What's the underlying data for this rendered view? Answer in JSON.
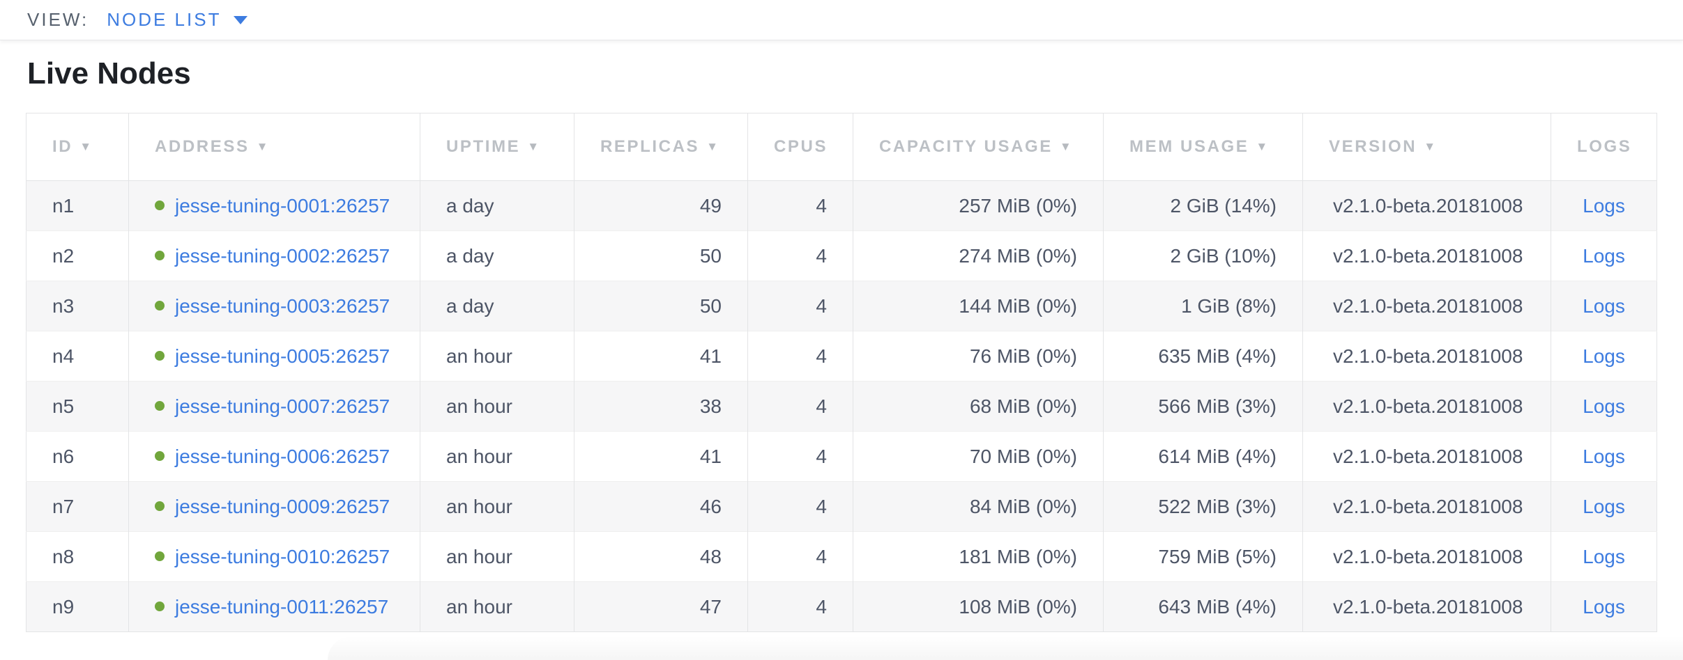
{
  "view_bar": {
    "label": "VIEW:",
    "selected": "NODE LIST"
  },
  "page": {
    "title": "Live Nodes"
  },
  "icons": {
    "sort_desc": "▼"
  },
  "colors": {
    "accent_blue": "#3d7ce0",
    "live_status_green": "#71a63c",
    "header_text_gray": "#bcc0c5",
    "body_text": "#4d5566"
  },
  "table": {
    "columns": [
      {
        "key": "id",
        "label": "ID",
        "sortable": true
      },
      {
        "key": "address",
        "label": "ADDRESS",
        "sortable": true
      },
      {
        "key": "uptime",
        "label": "UPTIME",
        "sortable": true
      },
      {
        "key": "replicas",
        "label": "REPLICAS",
        "sortable": true
      },
      {
        "key": "cpus",
        "label": "CPUS",
        "sortable": false
      },
      {
        "key": "capacity_usage",
        "label": "CAPACITY USAGE",
        "sortable": true
      },
      {
        "key": "mem_usage",
        "label": "MEM USAGE",
        "sortable": true
      },
      {
        "key": "version",
        "label": "VERSION",
        "sortable": true
      },
      {
        "key": "logs",
        "label": "LOGS",
        "sortable": false
      }
    ],
    "rows": [
      {
        "id": "n1",
        "address": "jesse-tuning-0001:26257",
        "uptime": "a day",
        "replicas": "49",
        "cpus": "4",
        "capacity_usage": "257 MiB (0%)",
        "mem_usage": "2 GiB (14%)",
        "version": "v2.1.0-beta.20181008",
        "logs": "Logs"
      },
      {
        "id": "n2",
        "address": "jesse-tuning-0002:26257",
        "uptime": "a day",
        "replicas": "50",
        "cpus": "4",
        "capacity_usage": "274 MiB (0%)",
        "mem_usage": "2 GiB (10%)",
        "version": "v2.1.0-beta.20181008",
        "logs": "Logs"
      },
      {
        "id": "n3",
        "address": "jesse-tuning-0003:26257",
        "uptime": "a day",
        "replicas": "50",
        "cpus": "4",
        "capacity_usage": "144 MiB (0%)",
        "mem_usage": "1 GiB (8%)",
        "version": "v2.1.0-beta.20181008",
        "logs": "Logs"
      },
      {
        "id": "n4",
        "address": "jesse-tuning-0005:26257",
        "uptime": "an hour",
        "replicas": "41",
        "cpus": "4",
        "capacity_usage": "76 MiB (0%)",
        "mem_usage": "635 MiB (4%)",
        "version": "v2.1.0-beta.20181008",
        "logs": "Logs"
      },
      {
        "id": "n5",
        "address": "jesse-tuning-0007:26257",
        "uptime": "an hour",
        "replicas": "38",
        "cpus": "4",
        "capacity_usage": "68 MiB (0%)",
        "mem_usage": "566 MiB (3%)",
        "version": "v2.1.0-beta.20181008",
        "logs": "Logs"
      },
      {
        "id": "n6",
        "address": "jesse-tuning-0006:26257",
        "uptime": "an hour",
        "replicas": "41",
        "cpus": "4",
        "capacity_usage": "70 MiB (0%)",
        "mem_usage": "614 MiB (4%)",
        "version": "v2.1.0-beta.20181008",
        "logs": "Logs"
      },
      {
        "id": "n7",
        "address": "jesse-tuning-0009:26257",
        "uptime": "an hour",
        "replicas": "46",
        "cpus": "4",
        "capacity_usage": "84 MiB (0%)",
        "mem_usage": "522 MiB (3%)",
        "version": "v2.1.0-beta.20181008",
        "logs": "Logs"
      },
      {
        "id": "n8",
        "address": "jesse-tuning-0010:26257",
        "uptime": "an hour",
        "replicas": "48",
        "cpus": "4",
        "capacity_usage": "181 MiB (0%)",
        "mem_usage": "759 MiB (5%)",
        "version": "v2.1.0-beta.20181008",
        "logs": "Logs"
      },
      {
        "id": "n9",
        "address": "jesse-tuning-0011:26257",
        "uptime": "an hour",
        "replicas": "47",
        "cpus": "4",
        "capacity_usage": "108 MiB (0%)",
        "mem_usage": "643 MiB (4%)",
        "version": "v2.1.0-beta.20181008",
        "logs": "Logs"
      }
    ]
  }
}
